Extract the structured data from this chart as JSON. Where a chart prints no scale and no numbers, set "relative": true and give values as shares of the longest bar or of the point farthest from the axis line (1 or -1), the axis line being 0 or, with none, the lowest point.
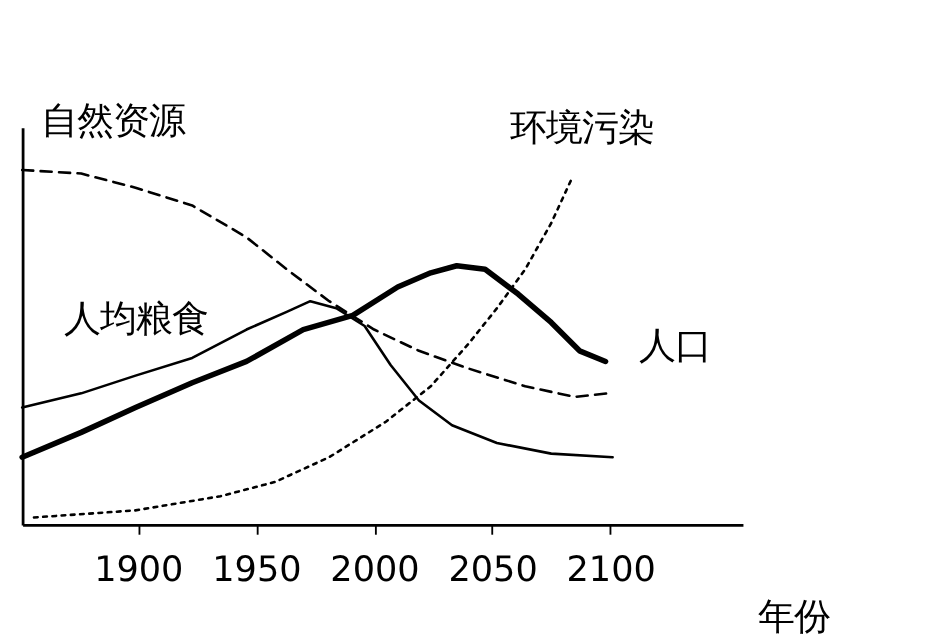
{
  "chart_data": {
    "type": "line",
    "relative": true,
    "xlabel": "年份",
    "xlim": [
      1851,
      2156
    ],
    "xticks": [
      1900,
      1950,
      2000,
      2050,
      2100
    ],
    "grid": false,
    "marker": "none",
    "series": [
      {
        "name": "自然资源",
        "color": "#000000",
        "line_style": "dashed",
        "x": [
          1851,
          1876,
          1899,
          1923,
          1946,
          1963,
          1981,
          2000,
          2019,
          2040,
          2064,
          2085,
          2099
        ],
        "values": [
          1.0,
          0.99,
          0.95,
          0.9,
          0.81,
          0.72,
          0.63,
          0.55,
          0.49,
          0.44,
          0.39,
          0.36,
          0.37
        ]
      },
      {
        "name": "环境污染",
        "color": "#000000",
        "line_style": "dotted",
        "x": [
          1856,
          1899,
          1935,
          1958,
          1981,
          2005,
          2024,
          2040,
          2052,
          2064,
          2075,
          2084
        ],
        "values": [
          0.02,
          0.04,
          0.08,
          0.12,
          0.19,
          0.29,
          0.39,
          0.51,
          0.61,
          0.72,
          0.85,
          0.98
        ]
      },
      {
        "name": "人均粮食",
        "color": "#000000",
        "line_style": "solid",
        "x": [
          1851,
          1876,
          1899,
          1923,
          1946,
          1963,
          1973,
          1984,
          1996,
          2007,
          2019,
          2033,
          2052,
          2075,
          2101
        ],
        "values": [
          0.33,
          0.37,
          0.42,
          0.47,
          0.55,
          0.6,
          0.63,
          0.61,
          0.56,
          0.45,
          0.35,
          0.28,
          0.23,
          0.2,
          0.19
        ]
      },
      {
        "name": "人口",
        "color": "#000000",
        "line_style": "solid",
        "x": [
          1851,
          1876,
          1899,
          1923,
          1946,
          1970,
          1991,
          2010,
          2024,
          2035,
          2047,
          2061,
          2075,
          2087,
          2098
        ],
        "values": [
          0.19,
          0.26,
          0.33,
          0.4,
          0.46,
          0.55,
          0.59,
          0.67,
          0.71,
          0.73,
          0.72,
          0.65,
          0.57,
          0.49,
          0.46
        ]
      }
    ]
  }
}
